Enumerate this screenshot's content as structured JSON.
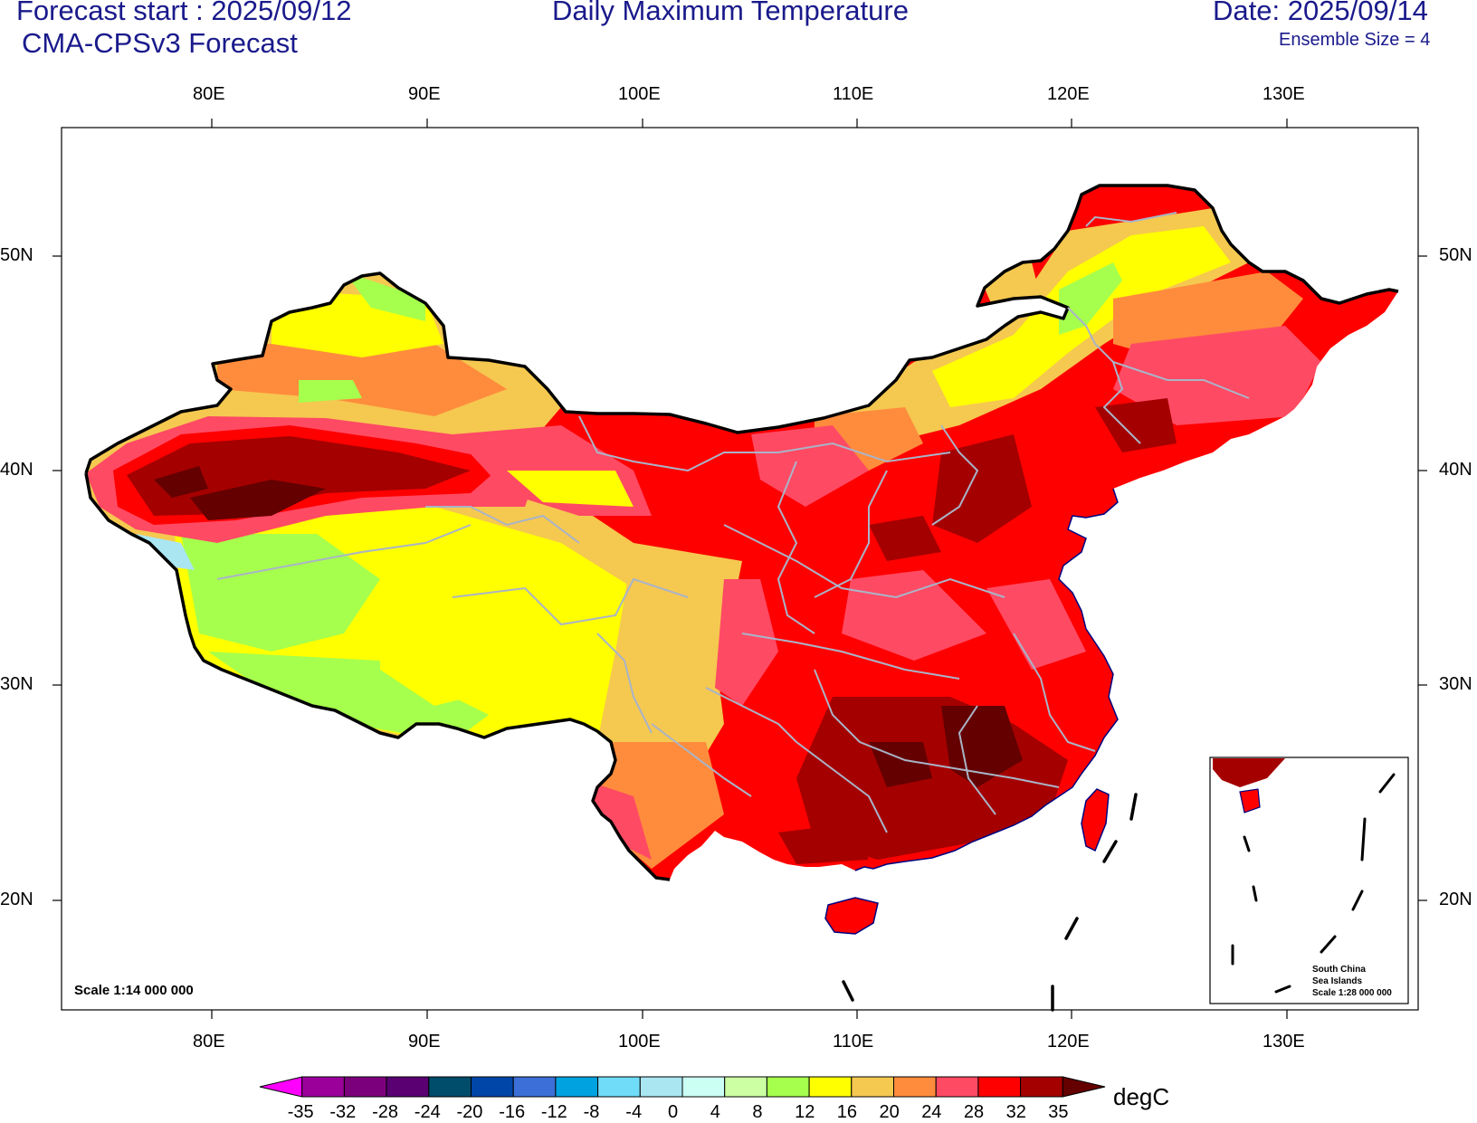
{
  "header": {
    "forecast_start": "Forecast start : 2025/09/12",
    "model": "CMA-CPSv3 Forecast",
    "title": "Daily Maximum Temperature",
    "date": "Date: 2025/09/14",
    "ensemble": "Ensemble Size = 4"
  },
  "map": {
    "lon_labels": [
      "80E",
      "90E",
      "100E",
      "110E",
      "120E",
      "130E"
    ],
    "lat_labels": [
      "50N",
      "40N",
      "30N",
      "20N"
    ],
    "scale_label": "Scale 1:14 000 000",
    "inset": {
      "line1": "South China",
      "line2": "Sea Islands",
      "line3": "Scale 1:28 000 000"
    }
  },
  "colorbar": {
    "unit": "degC",
    "ticks": [
      "-35",
      "-32",
      "-28",
      "-24",
      "-20",
      "-16",
      "-12",
      "-8",
      "-4",
      "0",
      "4",
      "8",
      "12",
      "16",
      "20",
      "24",
      "28",
      "32",
      "35"
    ],
    "colors": [
      "#ff00ff",
      "#9b009b",
      "#7b007b",
      "#5a0073",
      "#004c6b",
      "#0046a8",
      "#3c70d8",
      "#00a3e0",
      "#70dcf8",
      "#a9e6f2",
      "#ccfff4",
      "#ccffa3",
      "#a6ff4c",
      "#ffff00",
      "#f5c850",
      "#ff8c3c",
      "#ff4a64",
      "#ff0000",
      "#a50000",
      "#640000"
    ]
  },
  "colors": {
    "title_text": "#1a1a8c",
    "border": "#000000",
    "province_lines": "#a9b4c8",
    "coast": "#000080"
  }
}
